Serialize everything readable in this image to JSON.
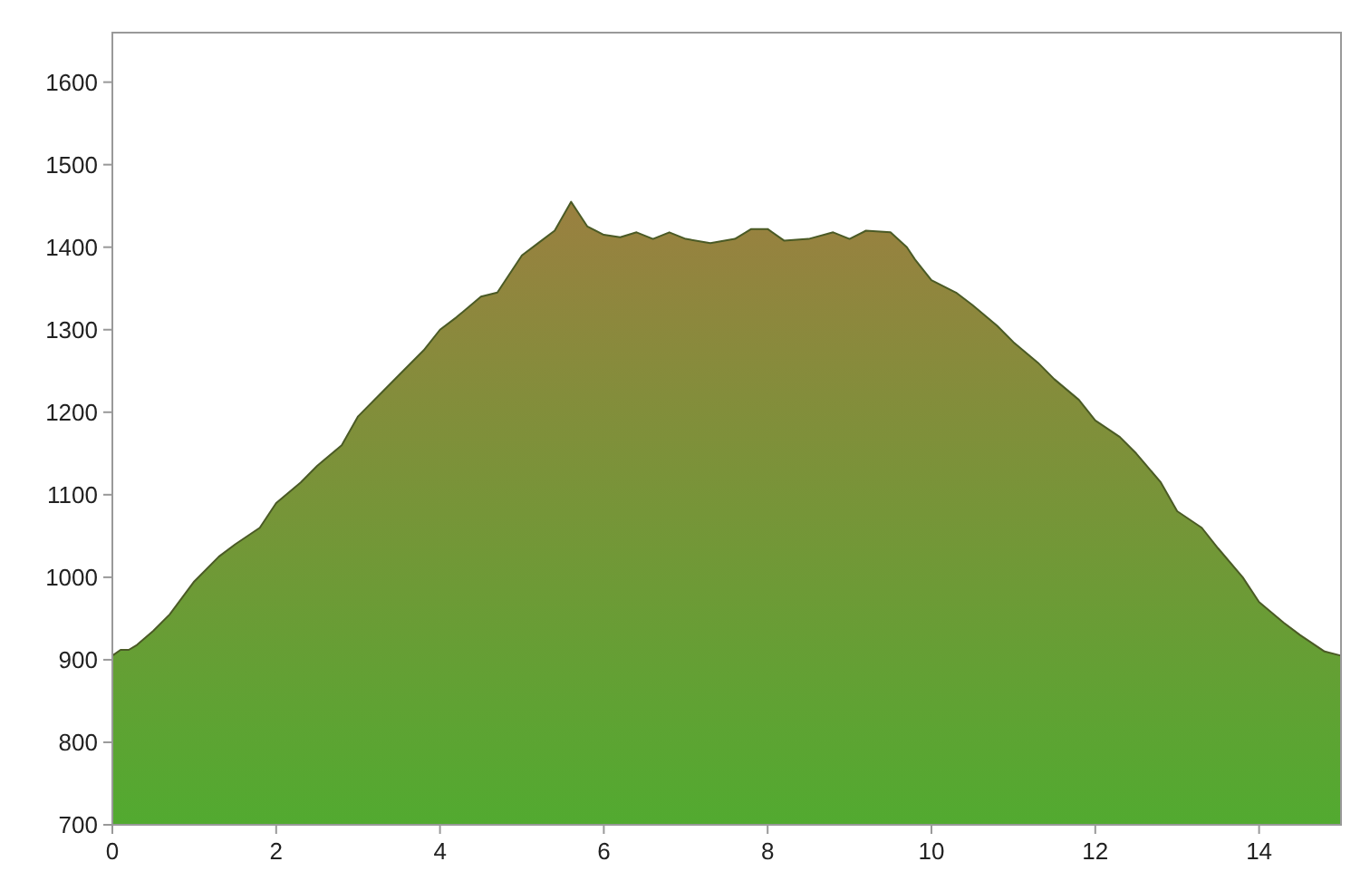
{
  "chart_data": {
    "type": "area",
    "xlim": [
      0,
      15
    ],
    "ylim": [
      700,
      1660
    ],
    "xticks": [
      0,
      2,
      4,
      6,
      8,
      10,
      12,
      14
    ],
    "yticks": [
      700,
      800,
      900,
      1000,
      1100,
      1200,
      1300,
      1400,
      1500,
      1600
    ],
    "grid": false,
    "series": [
      {
        "color": "#7f9a40",
        "x": [
          0,
          0.1,
          0.2,
          0.3,
          0.5,
          0.7,
          1,
          1.3,
          1.5,
          1.8,
          2,
          2.3,
          2.5,
          2.8,
          3,
          3.3,
          3.5,
          3.8,
          4,
          4.2,
          4.5,
          4.7,
          5,
          5.2,
          5.4,
          5.6,
          5.7,
          5.8,
          6,
          6.2,
          6.4,
          6.6,
          6.8,
          7,
          7.3,
          7.6,
          7.8,
          8,
          8.2,
          8.5,
          8.8,
          9,
          9.2,
          9.5,
          9.7,
          9.8,
          10,
          10.3,
          10.5,
          10.8,
          11,
          11.3,
          11.5,
          11.8,
          12,
          12.3,
          12.5,
          12.8,
          13,
          13.3,
          13.5,
          13.8,
          14,
          14.3,
          14.5,
          14.8,
          15
        ],
        "values": [
          905,
          912,
          912,
          918,
          935,
          955,
          995,
          1025,
          1040,
          1060,
          1090,
          1115,
          1135,
          1160,
          1195,
          1225,
          1245,
          1275,
          1300,
          1315,
          1340,
          1345,
          1390,
          1405,
          1420,
          1455,
          1440,
          1425,
          1415,
          1412,
          1418,
          1410,
          1418,
          1410,
          1405,
          1410,
          1422,
          1422,
          1408,
          1410,
          1418,
          1410,
          1420,
          1418,
          1400,
          1385,
          1360,
          1345,
          1330,
          1305,
          1285,
          1260,
          1240,
          1215,
          1190,
          1170,
          1150,
          1115,
          1080,
          1060,
          1035,
          1000,
          970,
          945,
          930,
          910,
          905
        ]
      }
    ]
  }
}
